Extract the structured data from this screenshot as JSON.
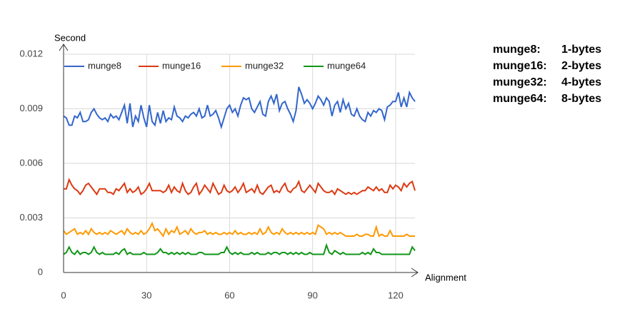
{
  "chart_data": {
    "type": "line",
    "y_label": "Second",
    "x_label": "Alignment",
    "x": [
      0,
      1,
      2,
      3,
      4,
      5,
      6,
      7,
      8,
      9,
      10,
      11,
      12,
      13,
      14,
      15,
      16,
      17,
      18,
      19,
      20,
      21,
      22,
      23,
      24,
      25,
      26,
      27,
      28,
      29,
      30,
      31,
      32,
      33,
      34,
      35,
      36,
      37,
      38,
      39,
      40,
      41,
      42,
      43,
      44,
      45,
      46,
      47,
      48,
      49,
      50,
      51,
      52,
      53,
      54,
      55,
      56,
      57,
      58,
      59,
      60,
      61,
      62,
      63,
      64,
      65,
      66,
      67,
      68,
      69,
      70,
      71,
      72,
      73,
      74,
      75,
      76,
      77,
      78,
      79,
      80,
      81,
      82,
      83,
      84,
      85,
      86,
      87,
      88,
      89,
      90,
      91,
      92,
      93,
      94,
      95,
      96,
      97,
      98,
      99,
      100,
      101,
      102,
      103,
      104,
      105,
      106,
      107,
      108,
      109,
      110,
      111,
      112,
      113,
      114,
      115,
      116,
      117,
      118,
      119,
      120,
      121,
      122,
      123,
      124,
      125,
      126,
      127
    ],
    "xlim": [
      0,
      127
    ],
    "xticks": [
      0,
      30,
      60,
      90,
      120
    ],
    "ylim": [
      0,
      0.012
    ],
    "yticks": [
      0,
      0.003,
      0.006,
      0.009,
      0.012
    ],
    "grid": true,
    "legend": "top",
    "series": [
      {
        "name": "munge8",
        "color": "#3366cc",
        "values": [
          0.0086,
          0.0085,
          0.0081,
          0.0081,
          0.0086,
          0.0085,
          0.0088,
          0.0083,
          0.0083,
          0.0084,
          0.0088,
          0.009,
          0.0087,
          0.0085,
          0.0084,
          0.0085,
          0.0083,
          0.0087,
          0.0085,
          0.0086,
          0.0084,
          0.0088,
          0.0092,
          0.0082,
          0.0093,
          0.008,
          0.0086,
          0.0083,
          0.0092,
          0.0085,
          0.008,
          0.0092,
          0.0083,
          0.0081,
          0.0088,
          0.0082,
          0.0089,
          0.0083,
          0.0085,
          0.0084,
          0.0091,
          0.0086,
          0.0085,
          0.0083,
          0.0086,
          0.0085,
          0.0087,
          0.0088,
          0.0086,
          0.009,
          0.0085,
          0.0086,
          0.0092,
          0.0086,
          0.0087,
          0.0089,
          0.0085,
          0.008,
          0.0085,
          0.009,
          0.0092,
          0.0088,
          0.009,
          0.0086,
          0.0092,
          0.0096,
          0.0095,
          0.0096,
          0.009,
          0.0088,
          0.0091,
          0.0094,
          0.0087,
          0.0086,
          0.0094,
          0.0097,
          0.0093,
          0.0098,
          0.0089,
          0.0093,
          0.0094,
          0.009,
          0.0087,
          0.0083,
          0.0089,
          0.0102,
          0.0098,
          0.0093,
          0.0095,
          0.0093,
          0.009,
          0.0093,
          0.0097,
          0.0095,
          0.0092,
          0.0096,
          0.0094,
          0.0086,
          0.0092,
          0.0094,
          0.0088,
          0.0095,
          0.009,
          0.0093,
          0.0087,
          0.0086,
          0.009,
          0.0086,
          0.0084,
          0.0083,
          0.0088,
          0.0086,
          0.0089,
          0.0088,
          0.009,
          0.0089,
          0.0084,
          0.0091,
          0.0092,
          0.0094,
          0.0094,
          0.0099,
          0.0091,
          0.0096,
          0.0091,
          0.0099,
          0.0096,
          0.0094
        ]
      },
      {
        "name": "munge16",
        "color": "#dc3912",
        "values": [
          0.0046,
          0.0046,
          0.0051,
          0.0048,
          0.0046,
          0.0045,
          0.0043,
          0.0045,
          0.0048,
          0.0049,
          0.0047,
          0.0045,
          0.0043,
          0.0046,
          0.0046,
          0.0046,
          0.0044,
          0.0044,
          0.0043,
          0.0046,
          0.0045,
          0.0047,
          0.0049,
          0.0044,
          0.0046,
          0.0044,
          0.0045,
          0.0047,
          0.0043,
          0.0044,
          0.0046,
          0.0049,
          0.0045,
          0.0045,
          0.0045,
          0.0045,
          0.0044,
          0.0045,
          0.0048,
          0.0044,
          0.0047,
          0.0045,
          0.0044,
          0.0049,
          0.0045,
          0.0043,
          0.0044,
          0.0047,
          0.0049,
          0.0043,
          0.0045,
          0.0048,
          0.0046,
          0.0044,
          0.0049,
          0.0046,
          0.0043,
          0.0044,
          0.0048,
          0.0045,
          0.0044,
          0.0045,
          0.0047,
          0.0044,
          0.0046,
          0.0049,
          0.0044,
          0.0045,
          0.0046,
          0.0044,
          0.0048,
          0.0044,
          0.0043,
          0.0045,
          0.0047,
          0.0048,
          0.0044,
          0.0045,
          0.0044,
          0.0047,
          0.0049,
          0.0045,
          0.0044,
          0.0046,
          0.0047,
          0.005,
          0.0045,
          0.0044,
          0.0046,
          0.0048,
          0.0046,
          0.0044,
          0.0049,
          0.0047,
          0.0045,
          0.0044,
          0.0044,
          0.0045,
          0.0043,
          0.0046,
          0.0045,
          0.0044,
          0.0043,
          0.0044,
          0.0043,
          0.0044,
          0.0043,
          0.0044,
          0.0045,
          0.0045,
          0.0047,
          0.0046,
          0.0045,
          0.0047,
          0.0045,
          0.0046,
          0.0044,
          0.0044,
          0.0048,
          0.0046,
          0.0048,
          0.0047,
          0.0045,
          0.0049,
          0.0047,
          0.0049,
          0.005,
          0.0045
        ]
      },
      {
        "name": "munge32",
        "color": "#ff9900",
        "values": [
          0.0023,
          0.0021,
          0.0022,
          0.0023,
          0.0024,
          0.0021,
          0.0022,
          0.0021,
          0.0023,
          0.0021,
          0.0024,
          0.0022,
          0.0021,
          0.0022,
          0.0021,
          0.0022,
          0.0021,
          0.0023,
          0.0022,
          0.0021,
          0.0022,
          0.0023,
          0.0021,
          0.0024,
          0.0022,
          0.0021,
          0.0022,
          0.0021,
          0.0023,
          0.0021,
          0.0022,
          0.0024,
          0.0027,
          0.0023,
          0.0024,
          0.0022,
          0.002,
          0.0024,
          0.0021,
          0.0023,
          0.0022,
          0.0025,
          0.0021,
          0.0022,
          0.0023,
          0.0021,
          0.0024,
          0.0022,
          0.0021,
          0.0022,
          0.0022,
          0.0023,
          0.0021,
          0.0022,
          0.0021,
          0.0022,
          0.0021,
          0.0021,
          0.0022,
          0.0021,
          0.0022,
          0.0021,
          0.0023,
          0.0021,
          0.0022,
          0.0021,
          0.0021,
          0.0022,
          0.0021,
          0.0022,
          0.0021,
          0.0024,
          0.0021,
          0.0022,
          0.0025,
          0.0022,
          0.0021,
          0.0022,
          0.0021,
          0.0024,
          0.0022,
          0.0021,
          0.0022,
          0.0021,
          0.0022,
          0.0021,
          0.0022,
          0.0021,
          0.0022,
          0.0021,
          0.0022,
          0.0021,
          0.0026,
          0.0025,
          0.0024,
          0.0021,
          0.0022,
          0.0021,
          0.0022,
          0.0021,
          0.0022,
          0.0021,
          0.002,
          0.002,
          0.002,
          0.002,
          0.0021,
          0.002,
          0.002,
          0.0021,
          0.0021,
          0.002,
          0.002,
          0.0025,
          0.002,
          0.0021,
          0.002,
          0.002,
          0.0023,
          0.002,
          0.002,
          0.002,
          0.002,
          0.002,
          0.0021,
          0.002,
          0.002,
          0.002
        ]
      },
      {
        "name": "munge64",
        "color": "#109618",
        "values": [
          0.001,
          0.0011,
          0.0014,
          0.0011,
          0.001,
          0.0012,
          0.001,
          0.0011,
          0.0011,
          0.001,
          0.0011,
          0.0014,
          0.0011,
          0.001,
          0.0011,
          0.001,
          0.001,
          0.001,
          0.001,
          0.0011,
          0.001,
          0.0012,
          0.0013,
          0.001,
          0.0011,
          0.001,
          0.001,
          0.001,
          0.001,
          0.0011,
          0.001,
          0.001,
          0.001,
          0.001,
          0.0011,
          0.0013,
          0.0011,
          0.0011,
          0.001,
          0.0011,
          0.001,
          0.0011,
          0.001,
          0.0011,
          0.001,
          0.0011,
          0.001,
          0.001,
          0.001,
          0.0011,
          0.0011,
          0.001,
          0.001,
          0.001,
          0.001,
          0.001,
          0.001,
          0.0011,
          0.0011,
          0.0014,
          0.0011,
          0.001,
          0.0011,
          0.001,
          0.0011,
          0.001,
          0.001,
          0.001,
          0.0011,
          0.001,
          0.0011,
          0.001,
          0.001,
          0.001,
          0.0011,
          0.001,
          0.0011,
          0.0011,
          0.001,
          0.0011,
          0.0011,
          0.001,
          0.0011,
          0.001,
          0.0011,
          0.001,
          0.0011,
          0.001,
          0.001,
          0.0011,
          0.001,
          0.001,
          0.001,
          0.001,
          0.001,
          0.0015,
          0.0011,
          0.001,
          0.0012,
          0.0011,
          0.001,
          0.0011,
          0.001,
          0.001,
          0.001,
          0.001,
          0.001,
          0.001,
          0.0011,
          0.001,
          0.0011,
          0.001,
          0.0013,
          0.0011,
          0.0011,
          0.001,
          0.001,
          0.001,
          0.001,
          0.001,
          0.001,
          0.001,
          0.001,
          0.001,
          0.001,
          0.001,
          0.0014,
          0.0012
        ]
      }
    ],
    "notes": [
      {
        "name": "munge8:",
        "text": "1-bytes"
      },
      {
        "name": "munge16:",
        "text": "2-bytes"
      },
      {
        "name": "munge32:",
        "text": "4-bytes"
      },
      {
        "name": "munge64:",
        "text": "8-bytes"
      }
    ]
  }
}
